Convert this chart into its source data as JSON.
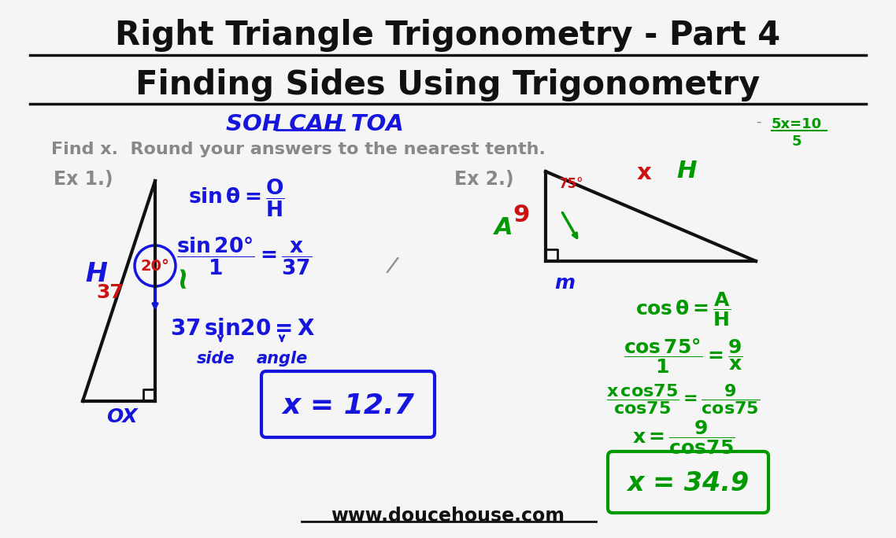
{
  "bg_color": "#f5f5f5",
  "title1": "Right Triangle Trigonometry - Part 4",
  "title2": "Finding Sides Using Trigonometry",
  "find_x": "Find x.  Round your answers to the nearest tenth.",
  "ex1": "Ex 1.)",
  "ex2": "Ex 2.)",
  "website": "www.doucehouse.com",
  "black": "#111111",
  "blue": "#1515dd",
  "red": "#cc1111",
  "green": "#009900",
  "gray": "#888888"
}
